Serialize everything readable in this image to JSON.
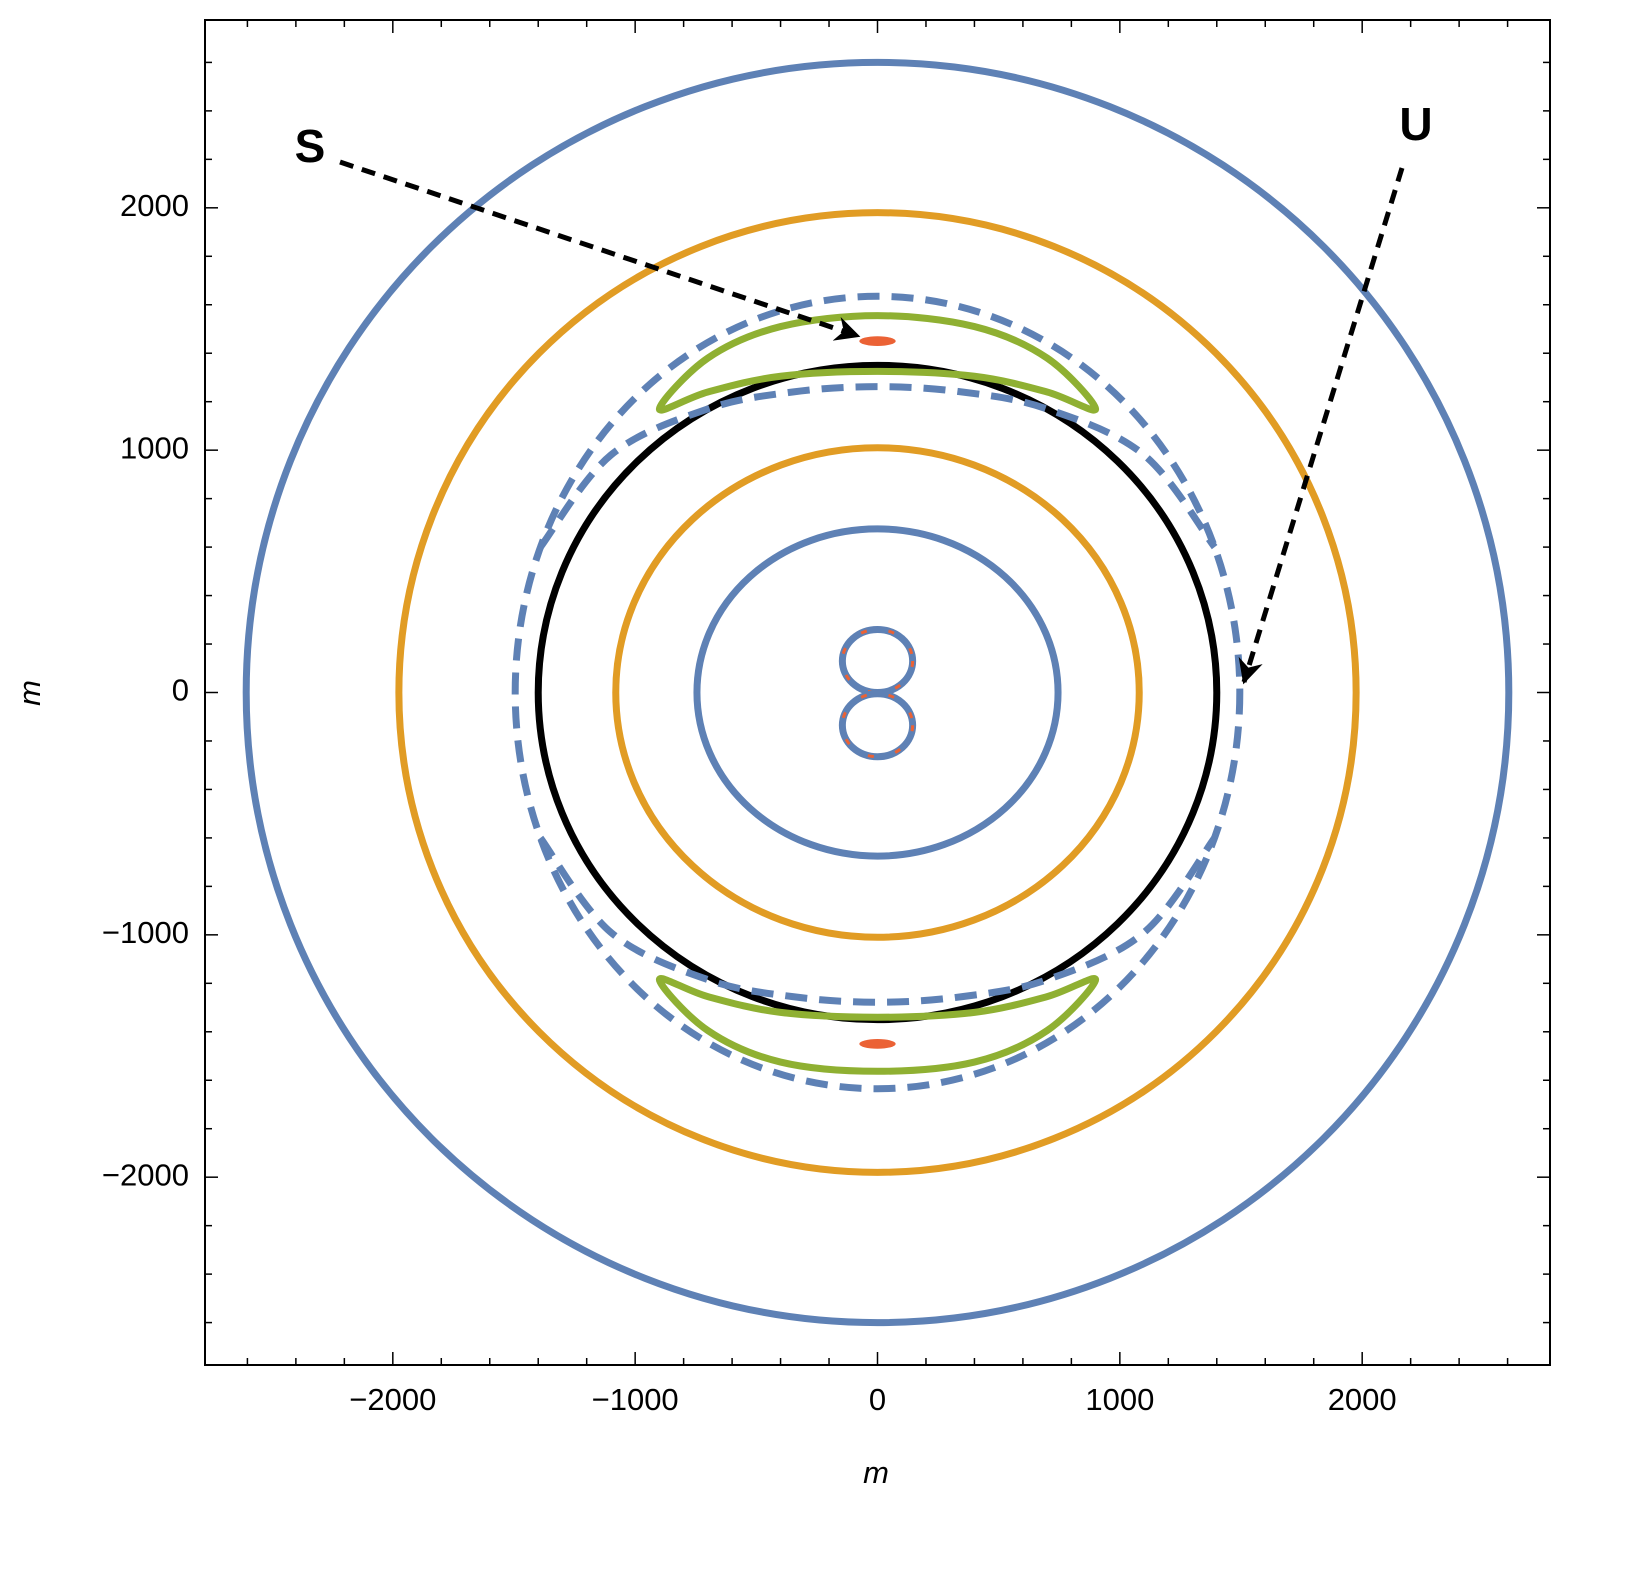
{
  "chart_data": {
    "type": "contour",
    "xlabel": "m",
    "ylabel": "m",
    "xlim": [
      -2775,
      2775
    ],
    "ylim": [
      -2775,
      2775
    ],
    "xticks": [
      {
        "value": -2000,
        "label": "−2000"
      },
      {
        "value": -1000,
        "label": "−1000"
      },
      0,
      1000,
      2000
    ],
    "yticks": [
      {
        "value": -2000,
        "label": "−2000"
      },
      {
        "value": -1000,
        "label": "−1000"
      },
      0,
      1000,
      2000
    ],
    "minor_tick_step": 200,
    "ellipses": [
      {
        "cx": 0,
        "cy": 0,
        "rx": 2605,
        "ry": 2600,
        "color": "#5e81b5"
      },
      {
        "cx": 0,
        "cy": 0,
        "rx": 1975,
        "ry": 1980,
        "color": "#e19c24"
      },
      {
        "cx": 0,
        "cy": 0,
        "rx": 1080,
        "ry": 1010,
        "color": "#e19c24"
      },
      {
        "cx": 0,
        "cy": 0,
        "rx": 745,
        "ry": 675,
        "color": "#5e81b5"
      },
      {
        "cx": 0,
        "cy": 0,
        "rx": 1400,
        "ry": 1350,
        "color": "#000000"
      },
      {
        "cx": 0,
        "cy": 0,
        "rx": 1495,
        "ry": 1635,
        "color": "#5e81b5",
        "dashed": true
      },
      {
        "cx": 0,
        "cy": 1450,
        "rx": 75,
        "ry": 20,
        "color": "#eb6235",
        "filled": true
      },
      {
        "cx": 0,
        "cy": -1450,
        "rx": 75,
        "ry": 20,
        "color": "#eb6235",
        "filled": true
      },
      {
        "cx": 0,
        "cy": 130,
        "rx": 145,
        "ry": 130,
        "color": "#5e81b5",
        "overlay_color": "#eb6235"
      },
      {
        "cx": 0,
        "cy": -135,
        "rx": 145,
        "ry": 130,
        "color": "#5e81b5",
        "overlay_color": "#eb6235"
      }
    ],
    "curves": [
      {
        "color": "#5e81b5",
        "dashed": true,
        "closed": false,
        "x": [
          -1391,
          -1100,
          -700,
          -350,
          0,
          350,
          700,
          1100,
          1391
        ],
        "y": [
          600,
          980,
          1170,
          1240,
          1262,
          1240,
          1170,
          980,
          600
        ]
      },
      {
        "color": "#5e81b5",
        "dashed": true,
        "closed": false,
        "x": [
          -1391,
          -1100,
          -700,
          -350,
          0,
          350,
          700,
          1100,
          1391
        ],
        "y": [
          -600,
          -990,
          -1185,
          -1255,
          -1278,
          -1255,
          -1185,
          -990,
          -600
        ]
      },
      {
        "color": "#8fb032",
        "closed": true,
        "x": [
          -900,
          -700,
          -400,
          0,
          400,
          700,
          900,
          700,
          400,
          0,
          -400,
          -700
        ],
        "y": [
          1170,
          1380,
          1510,
          1555,
          1510,
          1380,
          1170,
          1240,
          1305,
          1325,
          1305,
          1240
        ]
      },
      {
        "color": "#8fb032",
        "closed": true,
        "x": [
          -900,
          -700,
          -400,
          0,
          400,
          700,
          900,
          700,
          400,
          0,
          -400,
          -700
        ],
        "y": [
          -1185,
          -1395,
          -1525,
          -1563,
          -1525,
          -1395,
          -1185,
          -1255,
          -1320,
          -1340,
          -1320,
          -1255
        ]
      }
    ],
    "annotations": [
      "S",
      "U"
    ]
  }
}
